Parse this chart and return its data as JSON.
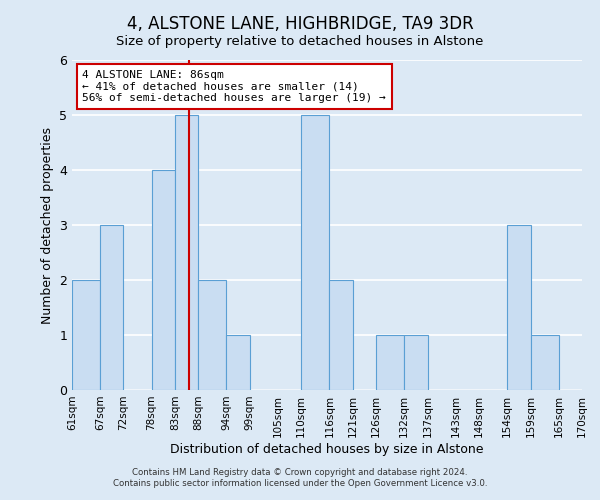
{
  "title": "4, ALSTONE LANE, HIGHBRIDGE, TA9 3DR",
  "subtitle": "Size of property relative to detached houses in Alstone",
  "xlabel": "Distribution of detached houses by size in Alstone",
  "ylabel": "Number of detached properties",
  "bin_edges": [
    61,
    67,
    72,
    78,
    83,
    88,
    94,
    99,
    105,
    110,
    116,
    121,
    126,
    132,
    137,
    143,
    148,
    154,
    159,
    165,
    170
  ],
  "counts": [
    2,
    3,
    0,
    4,
    5,
    2,
    1,
    0,
    0,
    5,
    2,
    0,
    1,
    1,
    0,
    0,
    0,
    3,
    1,
    0
  ],
  "tick_labels": [
    "61sqm",
    "67sqm",
    "72sqm",
    "78sqm",
    "83sqm",
    "88sqm",
    "94sqm",
    "99sqm",
    "105sqm",
    "110sqm",
    "116sqm",
    "121sqm",
    "126sqm",
    "132sqm",
    "137sqm",
    "143sqm",
    "148sqm",
    "154sqm",
    "159sqm",
    "165sqm",
    "170sqm"
  ],
  "bar_color": "#c9ddf2",
  "bar_edge_color": "#5a9fd4",
  "property_value": 86,
  "vline_color": "#cc0000",
  "annotation_title": "4 ALSTONE LANE: 86sqm",
  "annotation_line1": "← 41% of detached houses are smaller (14)",
  "annotation_line2": "56% of semi-detached houses are larger (19) →",
  "annotation_box_color": "#ffffff",
  "annotation_box_edge": "#cc0000",
  "ylim": [
    0,
    6
  ],
  "yticks": [
    0,
    1,
    2,
    3,
    4,
    5,
    6
  ],
  "footer_line1": "Contains HM Land Registry data © Crown copyright and database right 2024.",
  "footer_line2": "Contains public sector information licensed under the Open Government Licence v3.0.",
  "background_color": "#dce9f5",
  "grid_color": "#ffffff"
}
